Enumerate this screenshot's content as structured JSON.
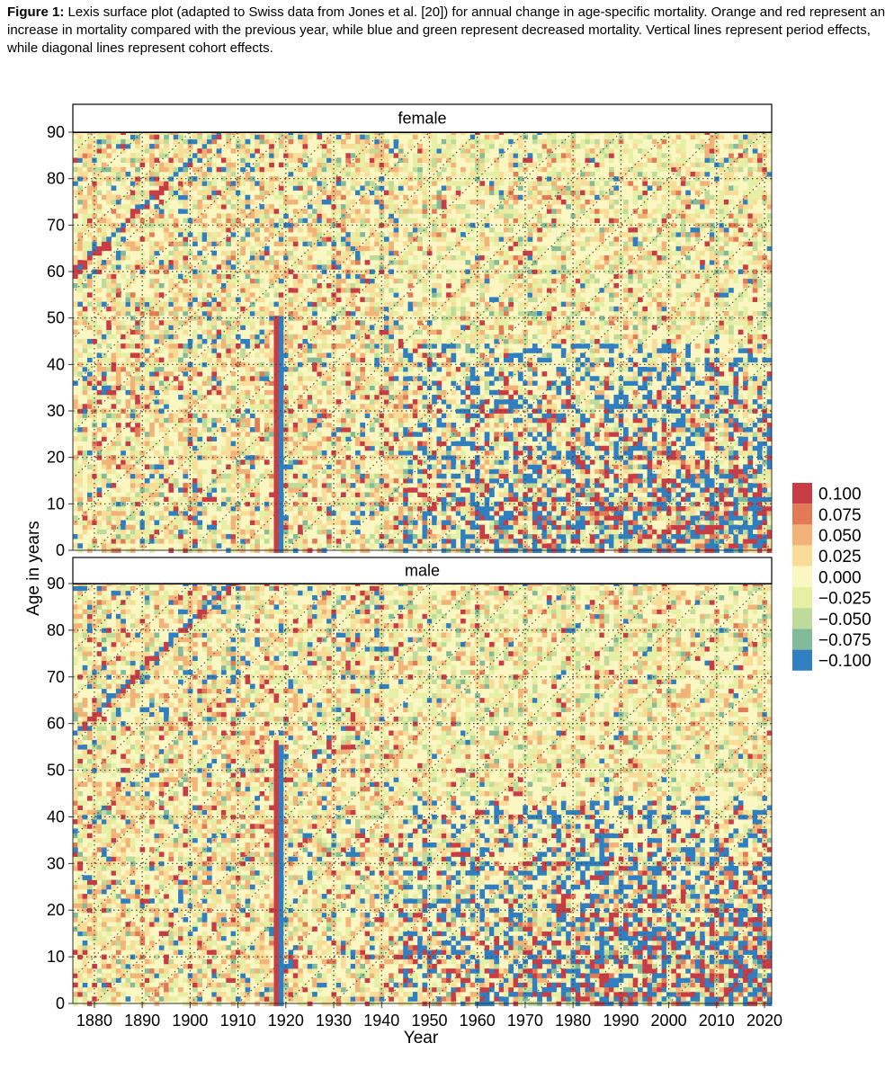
{
  "caption": {
    "label": "Figure 1:",
    "text": " Lexis surface plot (adapted to Swiss data from Jones et al. [20]) for annual change in age-specific mortality. Orange and red represent an increase in mortality compared with the previous year, while blue and green represent decreased mortality. Vertical lines represent period effects, while diagonal lines represent cohort effects."
  },
  "chart_data": {
    "type": "heatmap",
    "xlabel": "Year",
    "ylabel": "Age in years",
    "x_range": [
      1876,
      2021
    ],
    "y_range": [
      0,
      90
    ],
    "x_ticks": [
      "1880",
      "1890",
      "1900",
      "1910",
      "1920",
      "1930",
      "1940",
      "1950",
      "1960",
      "1970",
      "1980",
      "1990",
      "2000",
      "2010",
      "2020"
    ],
    "y_ticks": [
      "0",
      "10",
      "20",
      "30",
      "40",
      "50",
      "60",
      "70",
      "80",
      "90"
    ],
    "panels": [
      {
        "name": "female",
        "pandemic_year": 1918,
        "pandemic_age_max": 50,
        "cohort_diagonal_start_year": 1876,
        "cohort_diagonal_start_age": 60
      },
      {
        "name": "male",
        "pandemic_year": 1918,
        "pandemic_age_max": 55,
        "cohort_diagonal_start_year": 1876,
        "cohort_diagonal_start_age": 58
      }
    ],
    "grid": "dotted vertical lines every 10 years, dotted diagonal cohort lines every 10 years, dotted horizontal lines every 10 years of age",
    "legend": {
      "position": "right",
      "entries": [
        {
          "label": "0.100",
          "value": 0.1,
          "color": "#c83c46"
        },
        {
          "label": "0.075",
          "value": 0.075,
          "color": "#e27a56"
        },
        {
          "label": "0.050",
          "value": 0.05,
          "color": "#f2b378"
        },
        {
          "label": "0.025",
          "value": 0.025,
          "color": "#f9dc97"
        },
        {
          "label": "0.000",
          "value": 0.0,
          "color": "#fbf7c2"
        },
        {
          "label": "−0.025",
          "value": -0.025,
          "color": "#e6f0a5"
        },
        {
          "label": "−0.050",
          "value": -0.05,
          "color": "#bfdb9a"
        },
        {
          "label": "−0.075",
          "value": -0.075,
          "color": "#83bb9a"
        },
        {
          "label": "−0.100",
          "value": -0.1,
          "color": "#2f7fc1"
        }
      ]
    }
  }
}
